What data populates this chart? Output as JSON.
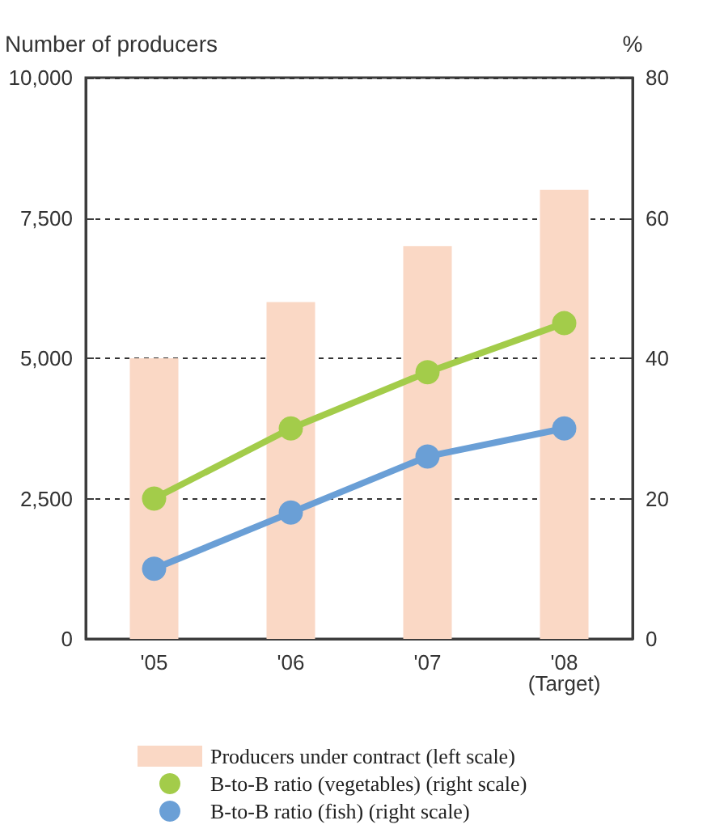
{
  "chart_data": {
    "type": "bar",
    "categories": [
      "'05",
      "'06",
      "'07",
      "'08\n(Target)"
    ],
    "ylabel": "Number of producers",
    "y2label": "%",
    "series": [
      {
        "name": "Producers under contract (left scale)",
        "type": "bar",
        "color": "#fad8c5",
        "values": [
          5000,
          6000,
          7000,
          8000
        ]
      },
      {
        "name": "B-to-B ratio (vegetables) (right scale)",
        "type": "line",
        "axis": "y2",
        "color": "#a3cc4a",
        "values": [
          20,
          30,
          38,
          45
        ]
      },
      {
        "name": "B-to-B ratio (fish) (right scale)",
        "type": "line",
        "axis": "y2",
        "color": "#6a9fd6",
        "values": [
          10,
          18,
          26,
          30
        ]
      }
    ],
    "ylim": [
      0,
      10000
    ],
    "yticks": [
      0,
      {
        "value": 2500,
        "label": "2,500"
      },
      {
        "value": 5000,
        "label": "5,000"
      },
      {
        "value": 7500,
        "label": "7,500"
      },
      {
        "value": 10000,
        "label": "10,000"
      }
    ],
    "y2lim": [
      0,
      80
    ],
    "y2ticks": [
      0,
      20,
      40,
      60,
      80
    ],
    "grid": "y",
    "legend": "bottom",
    "marker": "circle",
    "line_style": "solid"
  }
}
